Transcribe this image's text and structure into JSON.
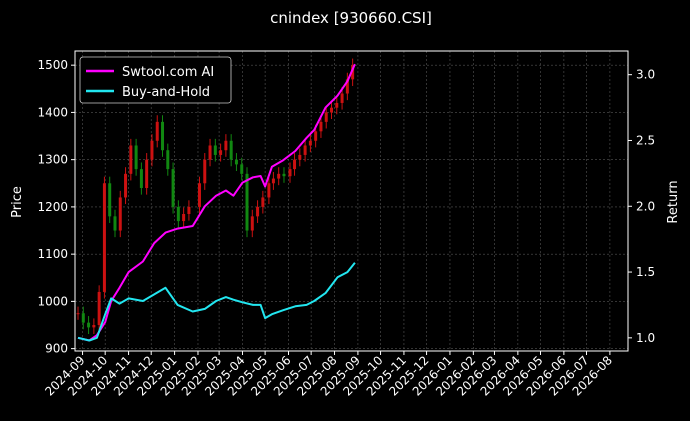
{
  "chart_data": {
    "type": "line",
    "title": "cnindex [930660.CSI]",
    "ylabel_left": "Price",
    "ylabel_right": "Return",
    "grid": true,
    "legend_placement": "top-left",
    "colors": {
      "background": "#000000",
      "axes_frame": "#ffffff",
      "grid": "#555555",
      "candle_up": "#cc1111",
      "candle_down": "#118811",
      "strategy": "#ff00ff",
      "benchmark": "#22e6f0"
    },
    "x_tick_labels": [
      "2024-09",
      "2024-10",
      "2024-11",
      "2024-12",
      "2025-01",
      "2025-02",
      "2025-03",
      "2025-04",
      "2025-05",
      "2025-06",
      "2025-07",
      "2025-08",
      "2025-09",
      "2025-10",
      "2025-11",
      "2025-12",
      "2026-01",
      "2026-02",
      "2026-03",
      "2026-04",
      "2026-05",
      "2026-06",
      "2026-07",
      "2026-08"
    ],
    "left_axis": {
      "ticks": [
        900,
        1000,
        1100,
        1200,
        1300,
        1400,
        1500
      ],
      "ylim": [
        895,
        1530
      ]
    },
    "right_axis": {
      "ticks": [
        1.0,
        1.5,
        2.0,
        2.5,
        3.0
      ],
      "ylim": [
        0.9,
        3.18
      ]
    },
    "candles_close": [
      {
        "date": "2024-08-26",
        "close": 975
      },
      {
        "date": "2024-09-02",
        "close": 955
      },
      {
        "date": "2024-09-09",
        "close": 945
      },
      {
        "date": "2024-09-16",
        "close": 950
      },
      {
        "date": "2024-09-23",
        "close": 1020
      },
      {
        "date": "2024-09-30",
        "close": 1250
      },
      {
        "date": "2024-10-07",
        "close": 1180
      },
      {
        "date": "2024-10-14",
        "close": 1150
      },
      {
        "date": "2024-10-21",
        "close": 1220
      },
      {
        "date": "2024-10-28",
        "close": 1270
      },
      {
        "date": "2024-11-04",
        "close": 1330
      },
      {
        "date": "2024-11-11",
        "close": 1280
      },
      {
        "date": "2024-11-18",
        "close": 1240
      },
      {
        "date": "2024-11-25",
        "close": 1300
      },
      {
        "date": "2024-12-02",
        "close": 1340
      },
      {
        "date": "2024-12-09",
        "close": 1380
      },
      {
        "date": "2024-12-16",
        "close": 1320
      },
      {
        "date": "2024-12-23",
        "close": 1280
      },
      {
        "date": "2024-12-30",
        "close": 1200
      },
      {
        "date": "2025-01-06",
        "close": 1170
      },
      {
        "date": "2025-01-13",
        "close": 1185
      },
      {
        "date": "2025-01-20",
        "close": 1200
      },
      {
        "date": "2025-02-03",
        "close": 1250
      },
      {
        "date": "2025-02-10",
        "close": 1300
      },
      {
        "date": "2025-02-17",
        "close": 1330
      },
      {
        "date": "2025-02-24",
        "close": 1310
      },
      {
        "date": "2025-03-03",
        "close": 1320
      },
      {
        "date": "2025-03-10",
        "close": 1340
      },
      {
        "date": "2025-03-17",
        "close": 1300
      },
      {
        "date": "2025-03-24",
        "close": 1290
      },
      {
        "date": "2025-03-31",
        "close": 1270
      },
      {
        "date": "2025-04-07",
        "close": 1150
      },
      {
        "date": "2025-04-14",
        "close": 1180
      },
      {
        "date": "2025-04-21",
        "close": 1200
      },
      {
        "date": "2025-04-28",
        "close": 1220
      },
      {
        "date": "2025-05-06",
        "close": 1250
      },
      {
        "date": "2025-05-12",
        "close": 1260
      },
      {
        "date": "2025-05-19",
        "close": 1270
      },
      {
        "date": "2025-05-26",
        "close": 1265
      },
      {
        "date": "2025-06-03",
        "close": 1280
      },
      {
        "date": "2025-06-09",
        "close": 1300
      },
      {
        "date": "2025-06-16",
        "close": 1310
      },
      {
        "date": "2025-06-23",
        "close": 1330
      },
      {
        "date": "2025-06-30",
        "close": 1340
      },
      {
        "date": "2025-07-07",
        "close": 1360
      },
      {
        "date": "2025-07-14",
        "close": 1380
      },
      {
        "date": "2025-07-21",
        "close": 1400
      },
      {
        "date": "2025-07-28",
        "close": 1410
      },
      {
        "date": "2025-08-04",
        "close": 1420
      },
      {
        "date": "2025-08-11",
        "close": 1440
      },
      {
        "date": "2025-08-18",
        "close": 1470
      },
      {
        "date": "2025-08-25",
        "close": 1500
      }
    ],
    "series": [
      {
        "name": "Swtool.com AI",
        "values": [
          {
            "date": "2024-08-26",
            "value": 1.0
          },
          {
            "date": "2024-09-10",
            "value": 0.98
          },
          {
            "date": "2024-09-20",
            "value": 1.02
          },
          {
            "date": "2024-10-01",
            "value": 1.12
          },
          {
            "date": "2024-10-09",
            "value": 1.28
          },
          {
            "date": "2024-10-20",
            "value": 1.38
          },
          {
            "date": "2024-11-01",
            "value": 1.5
          },
          {
            "date": "2024-11-20",
            "value": 1.58
          },
          {
            "date": "2024-12-05",
            "value": 1.72
          },
          {
            "date": "2024-12-20",
            "value": 1.8
          },
          {
            "date": "2025-01-05",
            "value": 1.83
          },
          {
            "date": "2025-01-25",
            "value": 1.85
          },
          {
            "date": "2025-02-10",
            "value": 2.0
          },
          {
            "date": "2025-02-25",
            "value": 2.08
          },
          {
            "date": "2025-03-10",
            "value": 2.12
          },
          {
            "date": "2025-03-20",
            "value": 2.08
          },
          {
            "date": "2025-04-01",
            "value": 2.18
          },
          {
            "date": "2025-04-15",
            "value": 2.22
          },
          {
            "date": "2025-04-25",
            "value": 2.23
          },
          {
            "date": "2025-05-01",
            "value": 2.15
          },
          {
            "date": "2025-05-10",
            "value": 2.3
          },
          {
            "date": "2025-05-25",
            "value": 2.35
          },
          {
            "date": "2025-06-10",
            "value": 2.42
          },
          {
            "date": "2025-06-25",
            "value": 2.52
          },
          {
            "date": "2025-07-05",
            "value": 2.58
          },
          {
            "date": "2025-07-20",
            "value": 2.75
          },
          {
            "date": "2025-08-05",
            "value": 2.84
          },
          {
            "date": "2025-08-18",
            "value": 2.95
          },
          {
            "date": "2025-08-28",
            "value": 3.08
          }
        ]
      },
      {
        "name": "Buy-and-Hold",
        "values": [
          {
            "date": "2024-08-26",
            "value": 1.0
          },
          {
            "date": "2024-09-10",
            "value": 0.98
          },
          {
            "date": "2024-09-20",
            "value": 1.0
          },
          {
            "date": "2024-10-01",
            "value": 1.18
          },
          {
            "date": "2024-10-09",
            "value": 1.3
          },
          {
            "date": "2024-10-20",
            "value": 1.26
          },
          {
            "date": "2024-11-01",
            "value": 1.3
          },
          {
            "date": "2024-11-20",
            "value": 1.28
          },
          {
            "date": "2024-12-05",
            "value": 1.33
          },
          {
            "date": "2024-12-20",
            "value": 1.38
          },
          {
            "date": "2025-01-05",
            "value": 1.25
          },
          {
            "date": "2025-01-25",
            "value": 1.2
          },
          {
            "date": "2025-02-10",
            "value": 1.22
          },
          {
            "date": "2025-02-25",
            "value": 1.28
          },
          {
            "date": "2025-03-10",
            "value": 1.31
          },
          {
            "date": "2025-03-20",
            "value": 1.29
          },
          {
            "date": "2025-04-01",
            "value": 1.27
          },
          {
            "date": "2025-04-15",
            "value": 1.25
          },
          {
            "date": "2025-04-25",
            "value": 1.25
          },
          {
            "date": "2025-05-01",
            "value": 1.15
          },
          {
            "date": "2025-05-10",
            "value": 1.18
          },
          {
            "date": "2025-05-25",
            "value": 1.21
          },
          {
            "date": "2025-06-10",
            "value": 1.24
          },
          {
            "date": "2025-06-25",
            "value": 1.25
          },
          {
            "date": "2025-07-05",
            "value": 1.28
          },
          {
            "date": "2025-07-20",
            "value": 1.34
          },
          {
            "date": "2025-08-05",
            "value": 1.46
          },
          {
            "date": "2025-08-18",
            "value": 1.5
          },
          {
            "date": "2025-08-28",
            "value": 1.57
          }
        ]
      }
    ]
  }
}
